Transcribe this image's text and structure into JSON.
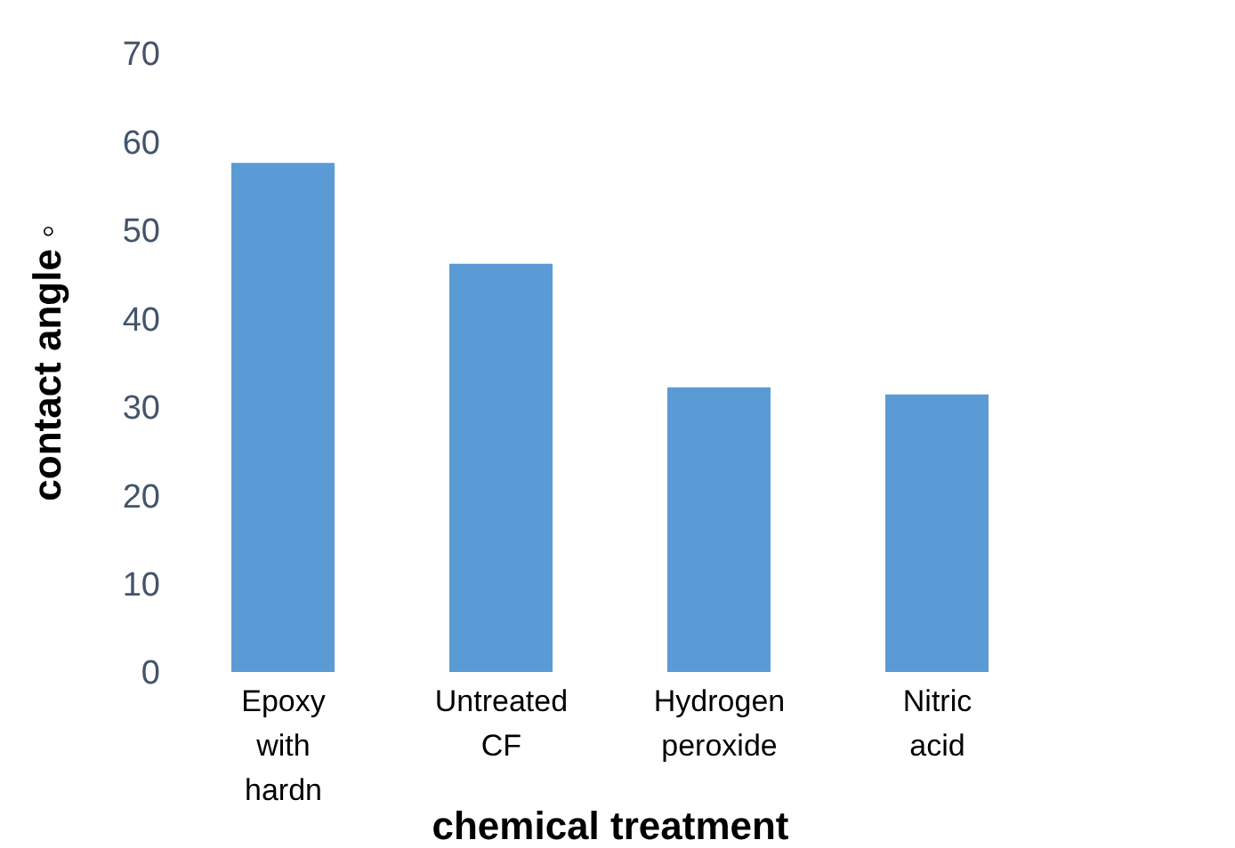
{
  "chart_data": {
    "type": "bar",
    "xlabel": "chemical  treatment",
    "ylabel": "contact angle ◦",
    "categories": [
      "Epoxy with hardn",
      "Untreated CF",
      "Hydrogen peroxide",
      "Nitric acid"
    ],
    "values": [
      57.6,
      46.2,
      32.2,
      31.4
    ],
    "color": "#5b9bd5",
    "ylim": [
      0,
      70
    ],
    "yticks": [
      0,
      10,
      20,
      30,
      40,
      50,
      60,
      70
    ],
    "grid": false,
    "legend": false
  }
}
